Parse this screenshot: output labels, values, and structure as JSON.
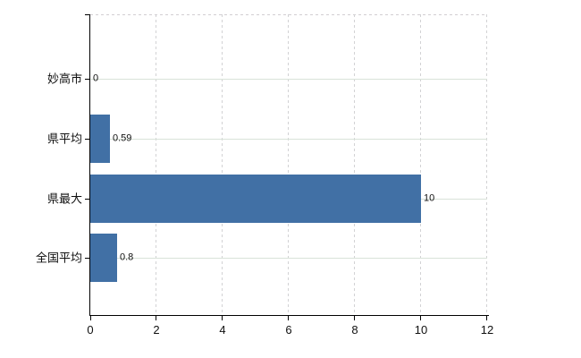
{
  "chart_data": {
    "type": "bar",
    "orientation": "horizontal",
    "title": "",
    "categories": [
      "妙高市",
      "県平均",
      "県最大",
      "全国平均"
    ],
    "values": [
      0,
      0.59,
      10,
      0.8
    ],
    "data_labels": [
      "0",
      "0.59",
      "10",
      "0.8"
    ],
    "xlim": [
      0,
      12
    ],
    "xticks": [
      0,
      2,
      4,
      6,
      8,
      10,
      12
    ],
    "xtick_labels": [
      "0",
      "2",
      "4",
      "6",
      "8",
      "10",
      "12"
    ],
    "xlabel": "",
    "ylabel": "",
    "legend": null,
    "grid": {
      "vertical": "dashed",
      "horizontal": "solid-at-category-centers",
      "top_border": "dashed"
    },
    "colors": {
      "bar": "#4170a5",
      "axis": "#000000",
      "grid_vertical": "#d2d2d4",
      "grid_horizontal": "#d9e2d9",
      "text": "#101010",
      "background": "#ffffff"
    }
  }
}
